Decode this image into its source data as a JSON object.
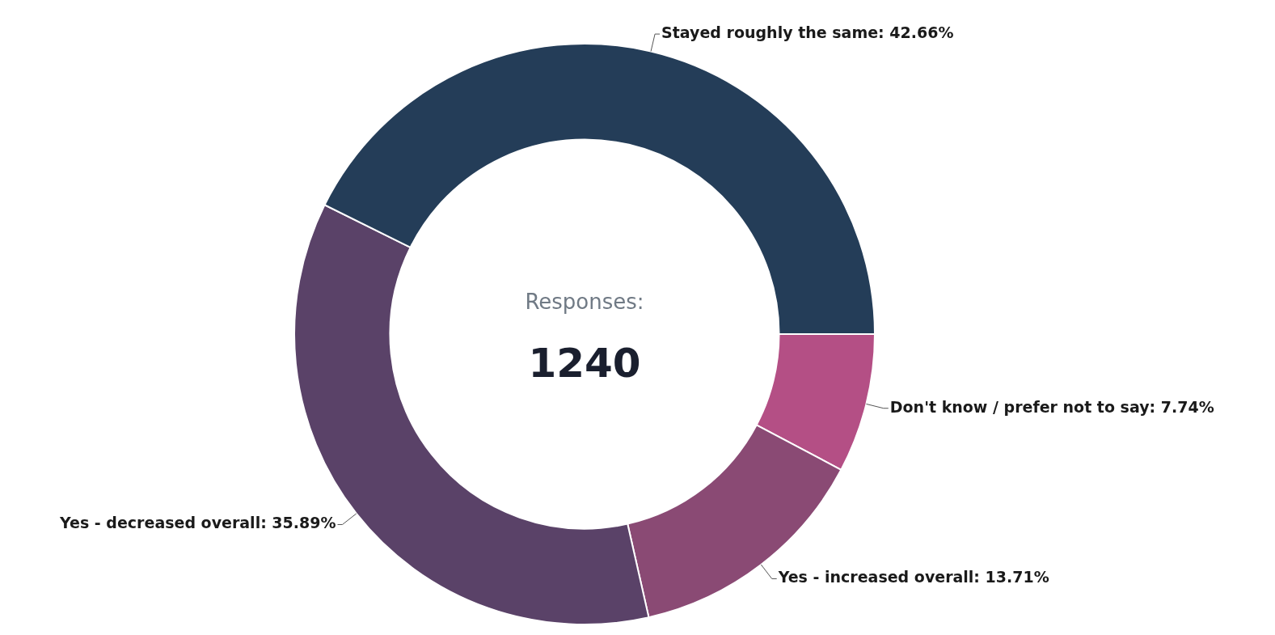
{
  "chart_data": {
    "type": "donut",
    "categories": [
      "Don't know / prefer not to say",
      "Yes - increased overall",
      "Yes - decreased overall",
      "Stayed roughly the same"
    ],
    "values": [
      7.74,
      13.71,
      35.89,
      42.66
    ],
    "colors": [
      "#b44f85",
      "#8a4a74",
      "#5a4268",
      "#243d58"
    ],
    "value_labels": [
      "7.74%",
      "13.71%",
      "35.89%",
      "42.66%"
    ],
    "annotations": [
      "Responses:",
      "1240"
    ]
  }
}
